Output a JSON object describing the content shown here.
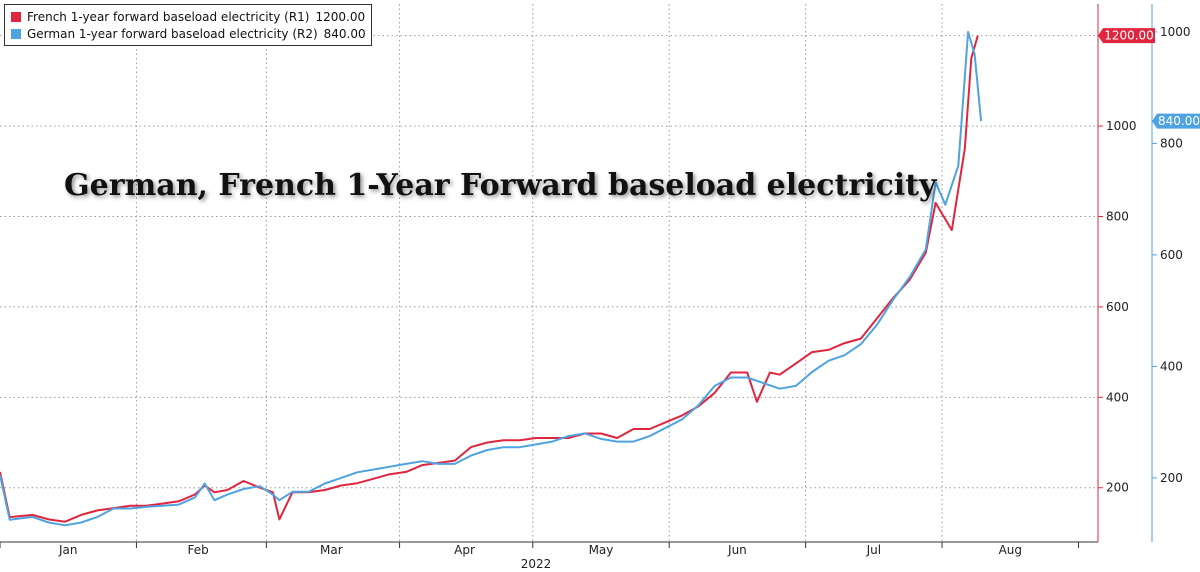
{
  "chart_data": {
    "type": "line",
    "title": "German, French 1-Year Forward baseload electricity",
    "xlabel": "2022",
    "x_tick_labels": [
      "Jan",
      "Feb",
      "Mar",
      "Apr",
      "May",
      "Jun",
      "Jul",
      "Aug"
    ],
    "y_left_axis": {
      "name": "R1",
      "ticks": [
        200,
        400,
        600,
        800,
        1000
      ],
      "ylim": [
        80,
        1270
      ]
    },
    "y_right_axis": {
      "name": "R2",
      "ticks": [
        200,
        400,
        600,
        800,
        1000
      ],
      "ylim": [
        85,
        1050
      ]
    },
    "grid": true,
    "legend_position": "top-left",
    "series": [
      {
        "name": "French 1-year forward baseload electricity (R1)",
        "last_value_label": "1200.00",
        "axis": "R1",
        "color": "#e0263f",
        "points": [
          [
            0.0,
            235
          ],
          [
            0.3,
            135
          ],
          [
            1.0,
            140
          ],
          [
            1.5,
            130
          ],
          [
            2.0,
            125
          ],
          [
            2.5,
            140
          ],
          [
            3.0,
            150
          ],
          [
            3.5,
            155
          ],
          [
            4.0,
            160
          ],
          [
            4.5,
            160
          ],
          [
            5.0,
            165
          ],
          [
            5.5,
            170
          ],
          [
            6.0,
            185
          ],
          [
            6.3,
            205
          ],
          [
            6.6,
            190
          ],
          [
            7.0,
            195
          ],
          [
            7.5,
            215
          ],
          [
            8.0,
            200
          ],
          [
            8.4,
            190
          ],
          [
            8.6,
            130
          ],
          [
            9.0,
            190
          ],
          [
            9.5,
            190
          ],
          [
            10.0,
            195
          ],
          [
            10.5,
            205
          ],
          [
            11.0,
            210
          ],
          [
            11.5,
            220
          ],
          [
            12.0,
            230
          ],
          [
            12.5,
            235
          ],
          [
            13.0,
            250
          ],
          [
            13.5,
            255
          ],
          [
            14.0,
            260
          ],
          [
            14.5,
            290
          ],
          [
            15.0,
            300
          ],
          [
            15.5,
            305
          ],
          [
            16.0,
            305
          ],
          [
            16.5,
            310
          ],
          [
            17.0,
            310
          ],
          [
            17.5,
            310
          ],
          [
            18.0,
            320
          ],
          [
            18.5,
            320
          ],
          [
            19.0,
            310
          ],
          [
            19.5,
            330
          ],
          [
            20.0,
            330
          ],
          [
            20.5,
            345
          ],
          [
            21.0,
            360
          ],
          [
            21.5,
            380
          ],
          [
            22.0,
            410
          ],
          [
            22.5,
            455
          ],
          [
            23.0,
            455
          ],
          [
            23.3,
            390
          ],
          [
            23.7,
            455
          ],
          [
            24.0,
            450
          ],
          [
            24.5,
            475
          ],
          [
            25.0,
            500
          ],
          [
            25.5,
            505
          ],
          [
            26.0,
            520
          ],
          [
            26.5,
            530
          ],
          [
            27.0,
            575
          ],
          [
            27.5,
            620
          ],
          [
            28.0,
            660
          ],
          [
            28.5,
            720
          ],
          [
            28.8,
            830
          ],
          [
            29.3,
            770
          ],
          [
            29.7,
            950
          ],
          [
            29.9,
            1150
          ],
          [
            30.1,
            1200
          ]
        ]
      },
      {
        "name": "German 1-year forward baseload electricity (R2)",
        "last_value_label": "840.00",
        "axis": "R2",
        "color": "#4fa3e0",
        "points": [
          [
            0.0,
            205
          ],
          [
            0.3,
            125
          ],
          [
            1.0,
            130
          ],
          [
            1.5,
            120
          ],
          [
            2.0,
            115
          ],
          [
            2.5,
            120
          ],
          [
            3.0,
            130
          ],
          [
            3.5,
            145
          ],
          [
            4.0,
            145
          ],
          [
            4.5,
            148
          ],
          [
            5.0,
            150
          ],
          [
            5.5,
            152
          ],
          [
            6.0,
            165
          ],
          [
            6.3,
            190
          ],
          [
            6.6,
            160
          ],
          [
            7.0,
            170
          ],
          [
            7.5,
            180
          ],
          [
            8.0,
            185
          ],
          [
            8.4,
            170
          ],
          [
            8.6,
            160
          ],
          [
            9.0,
            175
          ],
          [
            9.5,
            175
          ],
          [
            10.0,
            190
          ],
          [
            10.5,
            200
          ],
          [
            11.0,
            210
          ],
          [
            11.5,
            215
          ],
          [
            12.0,
            220
          ],
          [
            12.5,
            225
          ],
          [
            13.0,
            230
          ],
          [
            13.5,
            225
          ],
          [
            14.0,
            225
          ],
          [
            14.5,
            240
          ],
          [
            15.0,
            250
          ],
          [
            15.5,
            255
          ],
          [
            16.0,
            255
          ],
          [
            16.5,
            260
          ],
          [
            17.0,
            265
          ],
          [
            17.5,
            275
          ],
          [
            18.0,
            280
          ],
          [
            18.5,
            270
          ],
          [
            19.0,
            265
          ],
          [
            19.5,
            265
          ],
          [
            20.0,
            275
          ],
          [
            20.5,
            290
          ],
          [
            21.0,
            305
          ],
          [
            21.5,
            330
          ],
          [
            22.0,
            365
          ],
          [
            22.5,
            380
          ],
          [
            23.0,
            380
          ],
          [
            23.5,
            370
          ],
          [
            24.0,
            360
          ],
          [
            24.5,
            365
          ],
          [
            25.0,
            390
          ],
          [
            25.5,
            410
          ],
          [
            26.0,
            420
          ],
          [
            26.5,
            440
          ],
          [
            27.0,
            475
          ],
          [
            27.5,
            520
          ],
          [
            28.0,
            560
          ],
          [
            28.5,
            610
          ],
          [
            28.8,
            730
          ],
          [
            29.1,
            690
          ],
          [
            29.5,
            760
          ],
          [
            29.8,
            1000
          ],
          [
            30.0,
            960
          ],
          [
            30.2,
            840
          ]
        ]
      }
    ]
  },
  "legend": {
    "items": [
      {
        "name": "French 1-year forward baseload electricity (R1)",
        "value": "1200.00",
        "color": "#e0263f"
      },
      {
        "name": "German 1-year forward baseload electricity (R2)",
        "value": "840.00",
        "color": "#4fa3e0"
      }
    ]
  },
  "colors": {
    "french": "#e0263f",
    "german": "#4fa3e0",
    "grid": "#9a9a9a",
    "axis": "#333333"
  }
}
